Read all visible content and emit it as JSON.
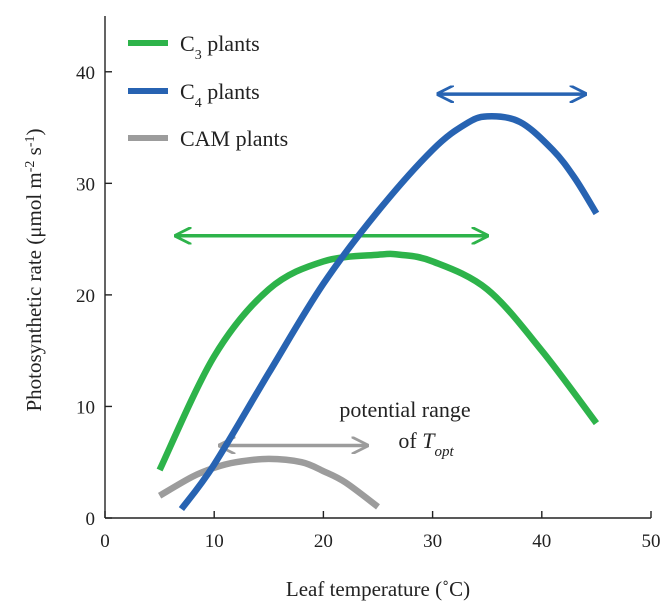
{
  "chart_data": {
    "type": "line",
    "xlabel": "Leaf temperature (˚C)",
    "ylabel": "Photosynthetic rate (μmol m-2 s-1)",
    "ylabel_parts": {
      "main": "Photosynthetic rate (μmol m",
      "sup1": "-2",
      "mid": " s",
      "sup2": "-1",
      "end": ")"
    },
    "xlim": [
      0,
      50
    ],
    "ylim": [
      0,
      45
    ],
    "xticks": [
      0,
      10,
      20,
      30,
      40,
      50
    ],
    "yticks": [
      0,
      10,
      20,
      30,
      40
    ],
    "grid": false,
    "legend_position": "top-left",
    "series": [
      {
        "name": "C3 plants",
        "name_parts": {
          "pre": "C",
          "sub": "3",
          "post": " plants"
        },
        "color": "#2db34a",
        "points": [
          [
            5,
            4.3
          ],
          [
            10,
            14.5
          ],
          [
            15,
            20.5
          ],
          [
            20,
            23
          ],
          [
            25,
            23.6
          ],
          [
            27,
            23.6
          ],
          [
            30,
            23
          ],
          [
            35,
            20.5
          ],
          [
            40,
            15
          ],
          [
            45,
            8.5
          ]
        ]
      },
      {
        "name": "C4 plants",
        "name_parts": {
          "pre": "C",
          "sub": "4",
          "post": " plants"
        },
        "color": "#2763b2",
        "points": [
          [
            7,
            0.8
          ],
          [
            10,
            4.8
          ],
          [
            15,
            13
          ],
          [
            20,
            21
          ],
          [
            25,
            27.5
          ],
          [
            30,
            33
          ],
          [
            33,
            35.3
          ],
          [
            35,
            36
          ],
          [
            38,
            35.5
          ],
          [
            41,
            33
          ],
          [
            43,
            30.5
          ],
          [
            45,
            27.3
          ]
        ]
      },
      {
        "name": "CAM plants",
        "name_parts": {
          "pre": "CAM plants",
          "sub": "",
          "post": ""
        },
        "color": "#9c9c9c",
        "points": [
          [
            5,
            2
          ],
          [
            8,
            3.7
          ],
          [
            10,
            4.5
          ],
          [
            12,
            5
          ],
          [
            15,
            5.3
          ],
          [
            18,
            5
          ],
          [
            20,
            4.2
          ],
          [
            22,
            3.2
          ],
          [
            25,
            1
          ]
        ]
      }
    ],
    "ranges": [
      {
        "series": "C4 plants",
        "x_from": 30.5,
        "x_to": 44,
        "y": 38,
        "color": "#2763b2"
      },
      {
        "series": "C3 plants",
        "x_from": 6.5,
        "x_to": 35,
        "y": 25.3,
        "color": "#2db34a"
      },
      {
        "series": "CAM plants",
        "x_from": 10.5,
        "x_to": 24,
        "y": 6.5,
        "color": "#9c9c9c"
      }
    ],
    "annotation": {
      "line1": "potential range",
      "line2_pre": "of ",
      "line2_T": "T",
      "line2_sub": "opt",
      "x": 26.5,
      "y": 9.5
    }
  }
}
